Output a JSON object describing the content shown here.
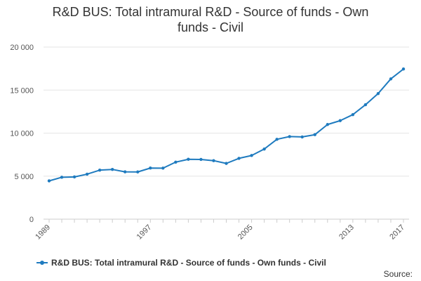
{
  "chart_data": {
    "type": "line",
    "title": "R&D BUS: Total intramural R&D - Source of funds - Own funds - Civil",
    "title_lines": [
      "R&D BUS: Total intramural R&D - Source of funds - Own",
      "funds - Civil"
    ],
    "xlabel": "",
    "ylabel": "",
    "x": [
      1989,
      1990,
      1991,
      1992,
      1993,
      1994,
      1995,
      1996,
      1997,
      1998,
      1999,
      2000,
      2001,
      2002,
      2003,
      2004,
      2005,
      2006,
      2007,
      2008,
      2009,
      2010,
      2011,
      2012,
      2013,
      2014,
      2015,
      2016,
      2017
    ],
    "x_tick_labels": [
      "1989",
      "1997",
      "2005",
      "2013",
      "2017"
    ],
    "xlim": [
      1989,
      2017
    ],
    "ylim": [
      0,
      20000
    ],
    "y_ticks": [
      0,
      5000,
      10000,
      15000,
      20000
    ],
    "y_tick_labels": [
      "0",
      "5 000",
      "10 000",
      "15 000",
      "20 000"
    ],
    "grid": true,
    "legend_position": "bottom",
    "series": [
      {
        "name": "R&D BUS: Total intramural R&D - Source of funds - Own funds - Civil",
        "color": "#1f7bbf",
        "values": [
          4450,
          4870,
          4910,
          5230,
          5700,
          5780,
          5500,
          5490,
          5940,
          5930,
          6630,
          6960,
          6940,
          6800,
          6480,
          7070,
          7400,
          8150,
          9280,
          9600,
          9560,
          9820,
          11000,
          11450,
          12150,
          13300,
          14600,
          16300,
          17450
        ]
      }
    ]
  },
  "source_label": "Source:"
}
